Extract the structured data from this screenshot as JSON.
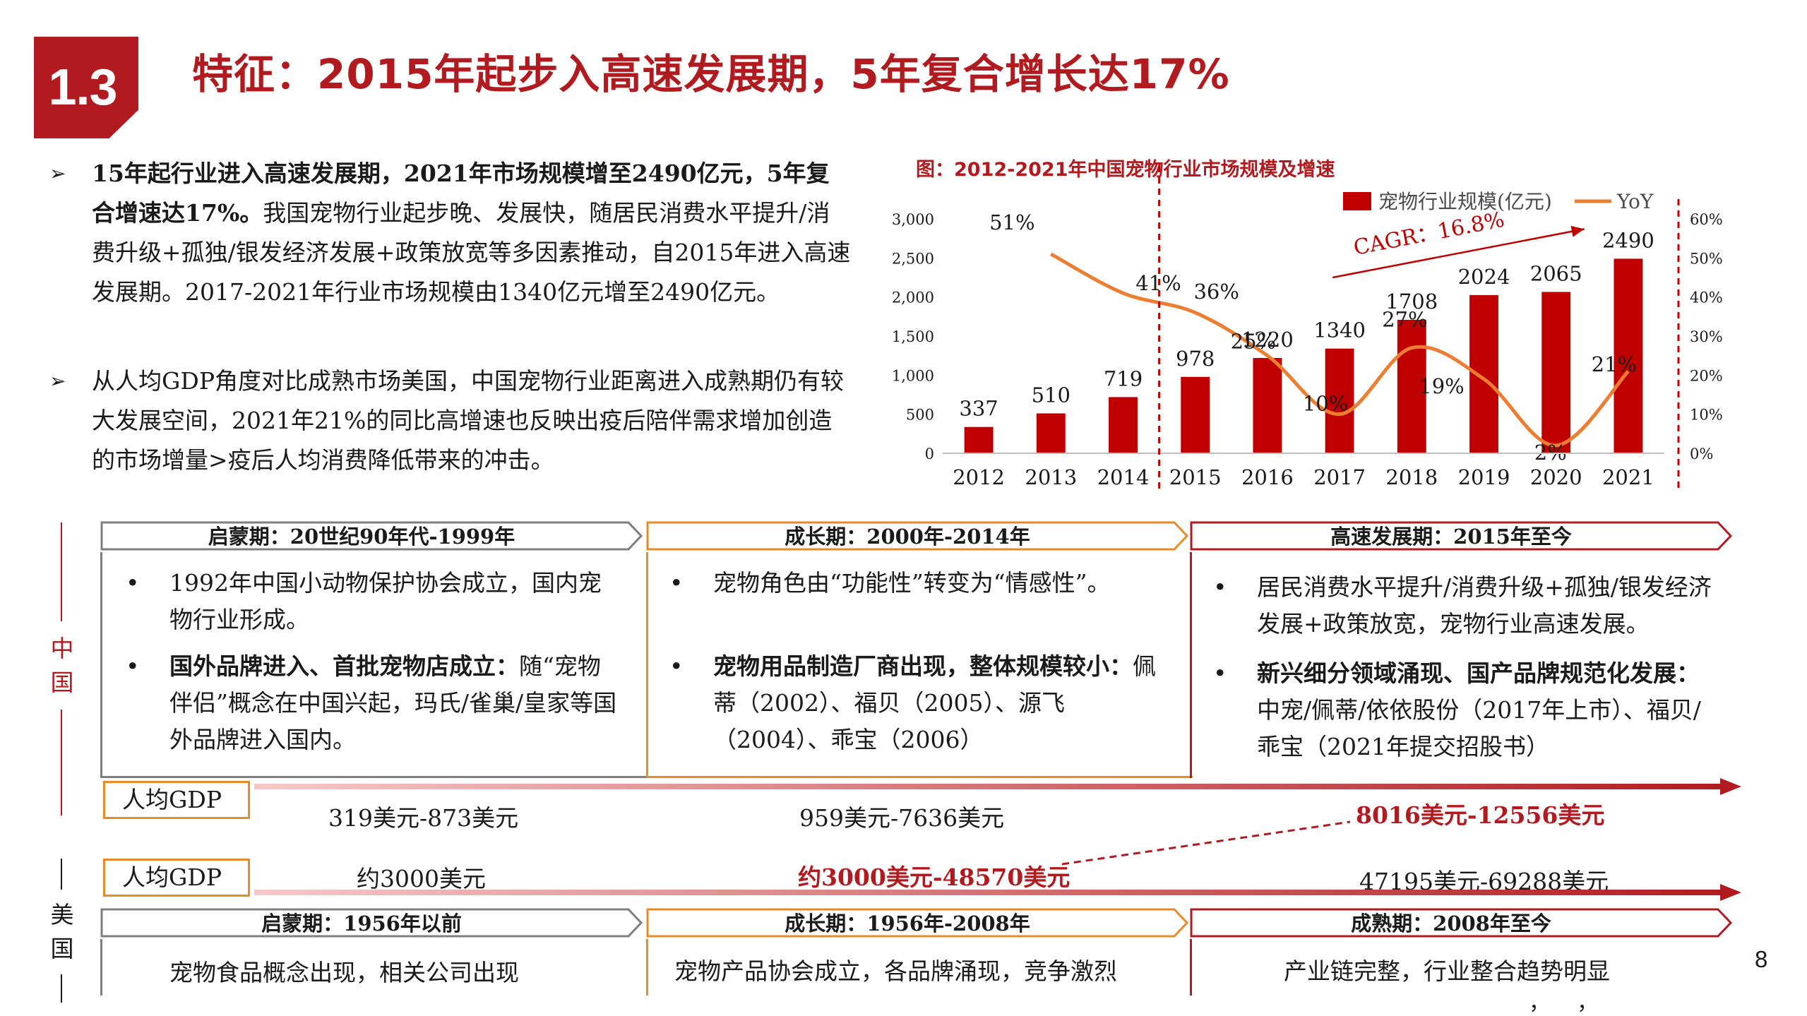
{
  "header": {
    "section": "1.3",
    "title": "特征：2015年起步入高速发展期，5年复合增长达17%"
  },
  "bullets": [
    {
      "mark": "➢",
      "bold": "15年起行业进入高速发展期，2021年市场规模增至2490亿元，5年复合增速达17%。",
      "text": "我国宠物行业起步晚、发展快，随居民消费水平提升/消费升级+孤独/银发经济发展+政策放宽等多因素推动，自2015年进入高速发展期。2017-2021年行业市场规模由1340亿元增至2490亿元。"
    },
    {
      "mark": "➢",
      "bold": "",
      "text": "从人均GDP角度对比成熟市场美国，中国宠物行业距离进入成熟期仍有较大发展空间，2021年21%的同比高增速也反映出疫后陪伴需求增加创造的市场增量>疫后人均消费降低带来的冲击。"
    }
  ],
  "chart_data": {
    "type": "bar",
    "title": "图：2012-2021年中国宠物行业市场规模及增速",
    "categories": [
      "2012",
      "2013",
      "2014",
      "2015",
      "2016",
      "2017",
      "2018",
      "2019",
      "2020",
      "2021"
    ],
    "series": [
      {
        "name": "宠物行业规模(亿元)",
        "type": "bar",
        "axis": "left",
        "color": "#c00000",
        "values": [
          337,
          510,
          719,
          978,
          1220,
          1340,
          1708,
          2024,
          2065,
          2490
        ],
        "labels": [
          "337",
          "510",
          "719",
          "978",
          "1220",
          "1340",
          "1708",
          "2024",
          "2065",
          "2490"
        ]
      },
      {
        "name": "YoY",
        "type": "line",
        "axis": "right",
        "color": "#ed7d31",
        "x": [
          "2013",
          "2014",
          "2015",
          "2016",
          "2017",
          "2018",
          "2019",
          "2020",
          "2021"
        ],
        "values": [
          51,
          41,
          36,
          25,
          10,
          27,
          19,
          2,
          21
        ],
        "labels": [
          "51%",
          "41%",
          "36%",
          "25%",
          "10%",
          "27%",
          "19%",
          "2%",
          "21%"
        ]
      }
    ],
    "y_left": {
      "min": 0,
      "max": 3000,
      "ticks": [
        "0",
        "500",
        "1,000",
        "1,500",
        "2,000",
        "2,500",
        "3,000"
      ]
    },
    "y_right": {
      "min": 0,
      "max": 60,
      "ticks": [
        "0%",
        "10%",
        "20%",
        "30%",
        "40%",
        "50%",
        "60%"
      ]
    },
    "annotation": "CAGR：16.8%",
    "divider_between": [
      "2014",
      "2015"
    ],
    "legend_position": "top-right"
  },
  "timeline": {
    "china_label": "中国",
    "us_label": "美国",
    "china_stages": [
      {
        "title": "启蒙期：20世纪90年代-1999年",
        "points": [
          {
            "bold": "",
            "text": "1992年中国小动物保护协会成立，国内宠物行业形成。"
          },
          {
            "bold": "国外品牌进入、首批宠物店成立：",
            "text": "随“宠物伴侣”概念在中国兴起，玛氏/雀巢/皇家等国外品牌进入国内。"
          }
        ]
      },
      {
        "title": "成长期：2000年-2014年",
        "points": [
          {
            "bold": "",
            "text": "宠物角色由“功能性”转变为“情感性”。"
          },
          {
            "bold": "宠物用品制造厂商出现，整体规模较小：",
            "text": "佩蒂（2002）、福贝（2005）、源飞（2004）、乖宝（2006）"
          }
        ]
      },
      {
        "title": "高速发展期：2015年至今",
        "points": [
          {
            "bold": "",
            "text": "居民消费水平提升/消费升级+孤独/银发经济发展+政策放宽，宠物行业高速发展。"
          },
          {
            "bold": "新兴细分领域涌现、国产品牌规范化发展：",
            "text": "中宠/佩蒂/依依股份（2017年上市）、福贝/乖宝（2021年提交招股书）"
          }
        ]
      }
    ],
    "china_gdp": {
      "label": "人均GDP",
      "values": [
        "319美元-873美元",
        "959美元-7636美元",
        "8016美元-12556美元"
      ]
    },
    "us_gdp": {
      "label": "人均GDP",
      "values": [
        "约3000美元",
        "约3000美元-48570美元",
        "47195美元-69288美元"
      ]
    },
    "us_stages": [
      {
        "title": "启蒙期：1956年以前",
        "text": "宠物食品概念出现，相关公司出现"
      },
      {
        "title": "成长期：1956年-2008年",
        "text": "宠物产品协会成立，各品牌涌现，竞争激烈"
      },
      {
        "title": "成熟期：2008年至今",
        "text": "产业链完整，行业整合趋势明显"
      }
    ]
  },
  "footer": {
    "page_number": "8",
    "stray_marks": "，    ，"
  },
  "colors": {
    "brand_red": "#b11b1f",
    "bar_red": "#c00000",
    "line_orange": "#ed7d31",
    "stage_gray": "#7f7f7f",
    "stage_orange": "#e8892a"
  }
}
